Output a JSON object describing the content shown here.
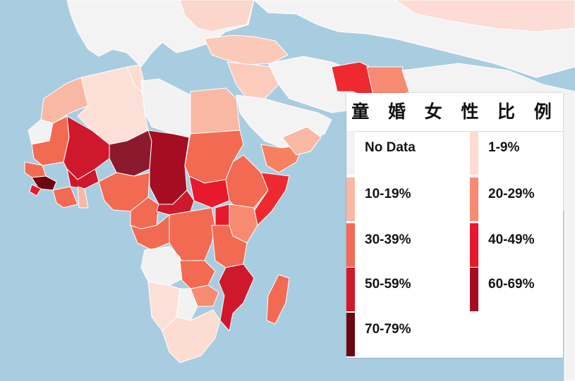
{
  "legend": {
    "title": "童 婚 女 性 比 例",
    "items": [
      {
        "label": "No Data",
        "color": "#f2f2f2"
      },
      {
        "label": "1-9%",
        "color": "#fddcd2"
      },
      {
        "label": "10-19%",
        "color": "#f9b8a4"
      },
      {
        "label": "20-29%",
        "color": "#f68b72"
      },
      {
        "label": "30-39%",
        "color": "#f36a52"
      },
      {
        "label": "40-49%",
        "color": "#e8192c"
      },
      {
        "label": "50-59%",
        "color": "#d0182c"
      },
      {
        "label": "60-69%",
        "color": "#a50e22"
      },
      {
        "label": "70-79%",
        "color": "#6e0610"
      }
    ]
  },
  "colors": {
    "ocean": "#a9cde0",
    "land_no_data": "#f2f2f2",
    "border": "#ffffff"
  }
}
